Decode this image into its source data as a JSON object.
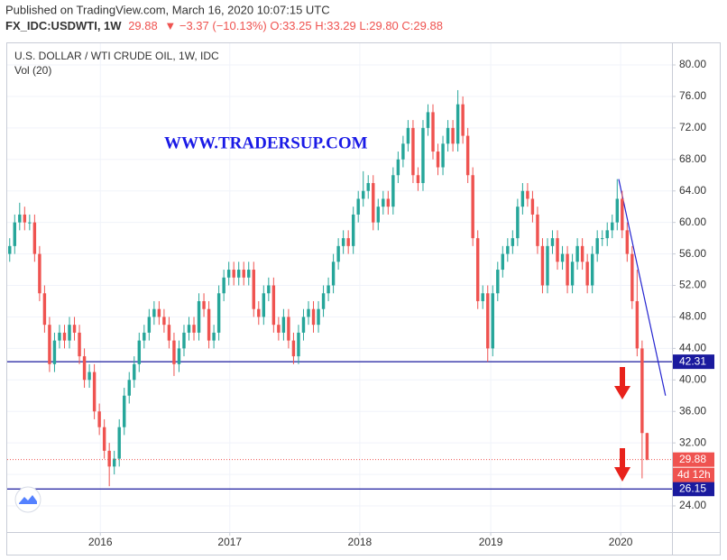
{
  "chart_data": {
    "type": "candlestick",
    "header": {
      "published": "Published on TradingView.com, March 16, 2020 10:07:15 UTC",
      "symbol": "FX_IDC:USDWTI, 1W",
      "last": "29.88",
      "change": "−3.37 (−10.13%)",
      "o": "O:33.25",
      "h": "H:33.29",
      "l": "L:29.80",
      "c": "C:29.88"
    },
    "title": "U.S. DOLLAR / WTI CRUDE OIL, 1W, IDC",
    "indicator": "Vol (20)",
    "watermark": "WWW.TRADERSUP.COM",
    "countdown": "4d 12h",
    "up_color": "#26a69a",
    "down_color": "#ef5350",
    "xlim": [
      -0.5,
      133
    ],
    "xticks": [
      {
        "value": 18.2,
        "label": "2016"
      },
      {
        "value": 44.2,
        "label": "2017"
      },
      {
        "value": 70.3,
        "label": "2018"
      },
      {
        "value": 96.6,
        "label": "2019"
      },
      {
        "value": 122.7,
        "label": "2020"
      }
    ],
    "ylim": [
      20.68,
      82.75
    ],
    "yticks": [
      {
        "value": 24,
        "label": "24.00"
      },
      {
        "value": 28,
        "label": "28.00"
      },
      {
        "value": 32,
        "label": "32.00"
      },
      {
        "value": 36,
        "label": "36.00"
      },
      {
        "value": 40,
        "label": "40.00"
      },
      {
        "value": 44,
        "label": "44.00"
      },
      {
        "value": 48,
        "label": "48.00"
      },
      {
        "value": 52,
        "label": "52.00"
      },
      {
        "value": 56,
        "label": "56.00"
      },
      {
        "value": 60,
        "label": "60.00"
      },
      {
        "value": 64,
        "label": "64.00"
      },
      {
        "value": 68,
        "label": "68.00"
      },
      {
        "value": 72,
        "label": "72.00"
      },
      {
        "value": 76,
        "label": "76.00"
      },
      {
        "value": 80,
        "label": "80.00"
      }
    ],
    "grid": true,
    "hlines": [
      42.31,
      26.15
    ],
    "hline_color": "#1a1a9e",
    "trendline": {
      "x": [
        122.3,
        131.7
      ],
      "y": [
        65.5,
        38
      ],
      "color": "#2424d0"
    },
    "open": [
      56,
      57,
      60,
      61,
      60,
      60,
      56,
      51,
      47,
      42,
      45,
      46,
      45,
      47,
      46,
      43,
      40,
      41,
      36,
      34,
      31,
      29,
      30,
      34,
      38,
      40,
      42,
      45,
      46,
      48,
      49,
      48,
      47,
      45,
      42,
      44,
      46,
      47,
      46,
      50,
      49,
      45,
      46,
      51,
      53,
      54,
      53,
      54,
      53,
      54,
      49,
      48,
      51,
      52,
      47,
      46,
      48,
      45,
      43,
      46,
      48,
      49,
      47,
      49,
      51,
      52,
      55,
      57,
      58,
      57,
      61,
      63,
      64,
      65,
      60,
      62,
      63,
      62,
      66,
      68,
      70,
      72,
      66,
      65,
      72,
      74,
      69,
      67,
      70,
      72,
      70,
      75,
      71,
      66,
      58,
      50,
      51,
      44,
      51,
      54,
      56,
      57,
      58,
      62,
      64,
      63,
      61,
      57,
      52,
      57,
      58,
      55,
      56,
      52,
      55,
      57,
      55,
      52,
      56,
      58,
      58,
      59,
      60,
      63,
      59,
      56,
      50,
      44,
      33.25
    ],
    "high": [
      58,
      61,
      62.5,
      62,
      61,
      61,
      57,
      52,
      48,
      46,
      47,
      47,
      48,
      48,
      47,
      44,
      42,
      42,
      37,
      35,
      32,
      31,
      35,
      39,
      41,
      43,
      46,
      47,
      49,
      50,
      50,
      49,
      48,
      46,
      45,
      47,
      48,
      48,
      51,
      51,
      50,
      47,
      52,
      54,
      55,
      55,
      55,
      55,
      55,
      55,
      50,
      52,
      53,
      53,
      48,
      49,
      49,
      46,
      47,
      49,
      50,
      50,
      50,
      52,
      53,
      56,
      58,
      59,
      59,
      62,
      64,
      66.5,
      66,
      66,
      63,
      64,
      64,
      67,
      69,
      71,
      73,
      73,
      67,
      73,
      75,
      75,
      70,
      71,
      73,
      73,
      76.8,
      76,
      72,
      67,
      59,
      52,
      52,
      52,
      55,
      57,
      58,
      59,
      63,
      65,
      65,
      64,
      62,
      58,
      58,
      59,
      59,
      57,
      57,
      56,
      58,
      58,
      56,
      57,
      59,
      59,
      60,
      61,
      65.5,
      64,
      60,
      57,
      54,
      45,
      33.29
    ],
    "low": [
      55,
      56,
      59,
      59,
      59,
      55,
      50,
      46,
      41,
      41,
      44,
      44,
      44,
      45,
      42,
      39,
      39,
      35,
      33,
      30,
      26.5,
      28,
      29,
      33,
      37,
      39,
      41,
      44,
      45,
      47,
      47,
      46,
      44,
      40.5,
      41,
      43,
      45,
      45,
      45,
      48,
      44,
      44,
      45,
      50,
      52,
      52,
      52,
      52,
      52,
      48,
      47,
      47,
      50,
      46,
      45,
      45,
      44,
      42,
      42,
      45,
      47,
      46,
      46,
      48,
      50,
      51,
      54,
      56,
      56,
      56,
      60,
      62,
      63,
      59,
      59,
      61,
      61,
      61,
      65,
      67,
      69,
      65,
      64,
      64,
      71,
      68,
      66,
      66,
      69,
      69,
      69,
      70,
      65,
      57,
      49,
      49,
      42.3,
      43,
      50,
      53,
      55,
      56,
      57,
      61,
      62,
      60,
      56,
      51,
      51,
      56,
      54,
      54,
      51,
      51,
      54,
      54,
      51,
      51,
      55,
      57,
      57,
      58,
      59,
      58,
      55,
      49,
      43,
      27.5,
      29.8
    ],
    "close": [
      57,
      60,
      61,
      60,
      60,
      56,
      51,
      47,
      42,
      45,
      46,
      45,
      47,
      46,
      43,
      40,
      41,
      36,
      34,
      31,
      29,
      30,
      34,
      38,
      40,
      42,
      45,
      46,
      48,
      49,
      48,
      47,
      45,
      42,
      44,
      46,
      47,
      46,
      50,
      49,
      45,
      46,
      51,
      53,
      54,
      53,
      54,
      53,
      54,
      49,
      48,
      51,
      52,
      47,
      46,
      48,
      45,
      43,
      46,
      48,
      49,
      47,
      49,
      51,
      52,
      55,
      57,
      58,
      57,
      61,
      63,
      64,
      65,
      60,
      62,
      63,
      62,
      66,
      68,
      70,
      72,
      66,
      65,
      72,
      74,
      69,
      67,
      70,
      72,
      70,
      75,
      71,
      66,
      58,
      50,
      51,
      44,
      51,
      54,
      56,
      57,
      58,
      62,
      64,
      63,
      61,
      57,
      52,
      57,
      58,
      55,
      56,
      52,
      55,
      57,
      55,
      52,
      56,
      58,
      58,
      59,
      60,
      63,
      59,
      56,
      50,
      44,
      33.25,
      29.88
    ]
  }
}
